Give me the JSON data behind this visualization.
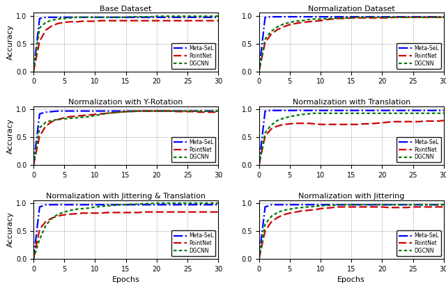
{
  "titles": [
    "Base Dataset",
    "Normalization Dataset",
    "Normalization with Y-Rotation",
    "Normalization with Translation",
    "Normalization with Jittering & Translation",
    "Normalization with Jittering"
  ],
  "xlabel": "Epochs",
  "ylabel": "Accuracy",
  "xlim": [
    0,
    30
  ],
  "ylim": [
    0.0,
    1.05
  ],
  "yticks": [
    0.0,
    0.5,
    1.0
  ],
  "xticks": [
    0,
    5,
    10,
    15,
    20,
    25,
    30
  ],
  "colors": {
    "meta": "#0000ff",
    "pointnet": "#cc0000",
    "dgcnn": "#007700"
  },
  "legend_labels": [
    "Meta-SeL",
    "PointNet",
    "DGCNN"
  ],
  "curves": {
    "base": {
      "meta": [
        0.0,
        0.95,
        0.97,
        0.97,
        0.97,
        0.97,
        0.97,
        0.97,
        0.97,
        0.97,
        0.97,
        0.97,
        0.97,
        0.97,
        0.97,
        0.97,
        0.97,
        0.97,
        0.97,
        0.97,
        0.97,
        0.97,
        0.97,
        0.97,
        0.97,
        0.97,
        0.97,
        0.97,
        0.97,
        0.97,
        0.97
      ],
      "pointnet": [
        0.0,
        0.54,
        0.74,
        0.82,
        0.86,
        0.88,
        0.89,
        0.89,
        0.9,
        0.9,
        0.9,
        0.91,
        0.91,
        0.91,
        0.91,
        0.91,
        0.91,
        0.91,
        0.91,
        0.91,
        0.91,
        0.91,
        0.91,
        0.91,
        0.91,
        0.91,
        0.91,
        0.91,
        0.91,
        0.91,
        0.91
      ],
      "dgcnn": [
        0.0,
        0.78,
        0.88,
        0.92,
        0.94,
        0.95,
        0.96,
        0.97,
        0.97,
        0.97,
        0.97,
        0.97,
        0.97,
        0.97,
        0.97,
        0.97,
        0.98,
        0.98,
        0.98,
        0.98,
        0.99,
        0.99,
        0.99,
        0.99,
        0.99,
        0.99,
        0.99,
        0.99,
        0.99,
        0.99,
        0.99
      ]
    },
    "normalization": {
      "meta": [
        0.0,
        0.97,
        0.98,
        0.98,
        0.98,
        0.98,
        0.98,
        0.98,
        0.98,
        0.98,
        0.98,
        0.98,
        0.98,
        0.98,
        0.98,
        0.98,
        0.98,
        0.98,
        0.98,
        0.98,
        0.98,
        0.98,
        0.98,
        0.98,
        0.98,
        0.98,
        0.98,
        0.98,
        0.98,
        0.98,
        0.98
      ],
      "pointnet": [
        0.0,
        0.52,
        0.67,
        0.75,
        0.8,
        0.84,
        0.86,
        0.88,
        0.89,
        0.9,
        0.91,
        0.93,
        0.94,
        0.95,
        0.95,
        0.96,
        0.96,
        0.96,
        0.96,
        0.96,
        0.96,
        0.96,
        0.97,
        0.97,
        0.97,
        0.97,
        0.97,
        0.97,
        0.97,
        0.97,
        0.97
      ],
      "dgcnn": [
        0.0,
        0.58,
        0.72,
        0.8,
        0.85,
        0.88,
        0.9,
        0.91,
        0.93,
        0.94,
        0.94,
        0.95,
        0.95,
        0.96,
        0.96,
        0.96,
        0.97,
        0.97,
        0.97,
        0.97,
        0.97,
        0.97,
        0.97,
        0.97,
        0.97,
        0.97,
        0.97,
        0.97,
        0.97,
        0.97,
        0.97
      ]
    },
    "yrotation": {
      "meta": [
        0.0,
        0.92,
        0.95,
        0.96,
        0.97,
        0.97,
        0.97,
        0.97,
        0.97,
        0.97,
        0.97,
        0.97,
        0.97,
        0.97,
        0.97,
        0.97,
        0.97,
        0.97,
        0.97,
        0.97,
        0.97,
        0.97,
        0.97,
        0.97,
        0.97,
        0.97,
        0.97,
        0.97,
        0.97,
        0.97,
        0.97
      ],
      "pointnet": [
        0.0,
        0.52,
        0.7,
        0.78,
        0.82,
        0.85,
        0.87,
        0.88,
        0.89,
        0.9,
        0.91,
        0.92,
        0.93,
        0.94,
        0.95,
        0.96,
        0.96,
        0.97,
        0.97,
        0.97,
        0.97,
        0.97,
        0.97,
        0.96,
        0.96,
        0.96,
        0.96,
        0.95,
        0.95,
        0.95,
        0.95
      ],
      "dgcnn": [
        0.0,
        0.67,
        0.77,
        0.8,
        0.82,
        0.83,
        0.84,
        0.85,
        0.86,
        0.87,
        0.89,
        0.91,
        0.93,
        0.94,
        0.95,
        0.96,
        0.96,
        0.97,
        0.97,
        0.97,
        0.97,
        0.97,
        0.97,
        0.97,
        0.97,
        0.97,
        0.97,
        0.97,
        0.97,
        0.97,
        0.97
      ]
    },
    "translation": {
      "meta": [
        0.0,
        0.97,
        0.98,
        0.98,
        0.98,
        0.98,
        0.98,
        0.98,
        0.98,
        0.98,
        0.98,
        0.98,
        0.98,
        0.98,
        0.98,
        0.98,
        0.98,
        0.98,
        0.98,
        0.98,
        0.98,
        0.98,
        0.98,
        0.98,
        0.98,
        0.98,
        0.98,
        0.98,
        0.98,
        0.98,
        0.98
      ],
      "pointnet": [
        0.0,
        0.52,
        0.65,
        0.7,
        0.73,
        0.74,
        0.75,
        0.75,
        0.75,
        0.74,
        0.73,
        0.73,
        0.73,
        0.73,
        0.73,
        0.73,
        0.73,
        0.74,
        0.74,
        0.75,
        0.76,
        0.77,
        0.78,
        0.78,
        0.78,
        0.78,
        0.78,
        0.79,
        0.79,
        0.79,
        0.8
      ],
      "dgcnn": [
        0.0,
        0.58,
        0.72,
        0.8,
        0.84,
        0.87,
        0.89,
        0.91,
        0.92,
        0.93,
        0.93,
        0.93,
        0.93,
        0.93,
        0.93,
        0.93,
        0.93,
        0.93,
        0.93,
        0.93,
        0.93,
        0.93,
        0.93,
        0.93,
        0.93,
        0.93,
        0.93,
        0.93,
        0.93,
        0.93,
        0.93
      ]
    },
    "jitter_trans": {
      "meta": [
        0.0,
        0.93,
        0.97,
        0.97,
        0.97,
        0.97,
        0.97,
        0.97,
        0.97,
        0.97,
        0.97,
        0.97,
        0.97,
        0.97,
        0.97,
        0.97,
        0.97,
        0.97,
        0.97,
        0.97,
        0.97,
        0.97,
        0.97,
        0.97,
        0.97,
        0.97,
        0.97,
        0.97,
        0.97,
        0.97,
        0.97
      ],
      "pointnet": [
        0.0,
        0.53,
        0.67,
        0.73,
        0.77,
        0.79,
        0.8,
        0.81,
        0.82,
        0.82,
        0.82,
        0.82,
        0.83,
        0.83,
        0.83,
        0.83,
        0.83,
        0.83,
        0.84,
        0.84,
        0.84,
        0.84,
        0.84,
        0.84,
        0.84,
        0.84,
        0.84,
        0.84,
        0.84,
        0.84,
        0.84
      ],
      "dgcnn": [
        0.0,
        0.35,
        0.6,
        0.73,
        0.8,
        0.84,
        0.87,
        0.89,
        0.9,
        0.91,
        0.93,
        0.94,
        0.95,
        0.96,
        0.97,
        0.97,
        0.98,
        0.98,
        0.99,
        0.99,
        1.0,
        1.0,
        1.0,
        1.0,
        1.0,
        1.0,
        1.0,
        1.0,
        1.0,
        1.0,
        1.0
      ]
    },
    "jittering": {
      "meta": [
        0.0,
        0.93,
        0.97,
        0.97,
        0.97,
        0.97,
        0.97,
        0.97,
        0.97,
        0.97,
        0.97,
        0.97,
        0.97,
        0.97,
        0.97,
        0.97,
        0.97,
        0.97,
        0.97,
        0.97,
        0.97,
        0.97,
        0.97,
        0.97,
        0.97,
        0.97,
        0.97,
        0.97,
        0.97,
        0.97,
        0.97
      ],
      "pointnet": [
        0.0,
        0.5,
        0.66,
        0.74,
        0.79,
        0.82,
        0.84,
        0.86,
        0.87,
        0.88,
        0.9,
        0.91,
        0.92,
        0.93,
        0.93,
        0.93,
        0.93,
        0.93,
        0.93,
        0.93,
        0.93,
        0.92,
        0.92,
        0.92,
        0.92,
        0.93,
        0.93,
        0.93,
        0.93,
        0.93,
        0.93
      ],
      "dgcnn": [
        0.0,
        0.62,
        0.76,
        0.83,
        0.87,
        0.89,
        0.91,
        0.92,
        0.93,
        0.94,
        0.95,
        0.96,
        0.96,
        0.97,
        0.97,
        0.97,
        0.97,
        0.97,
        0.97,
        0.97,
        0.97,
        0.97,
        0.97,
        0.97,
        0.97,
        0.97,
        0.97,
        0.97,
        0.97,
        0.97,
        0.97
      ]
    }
  }
}
